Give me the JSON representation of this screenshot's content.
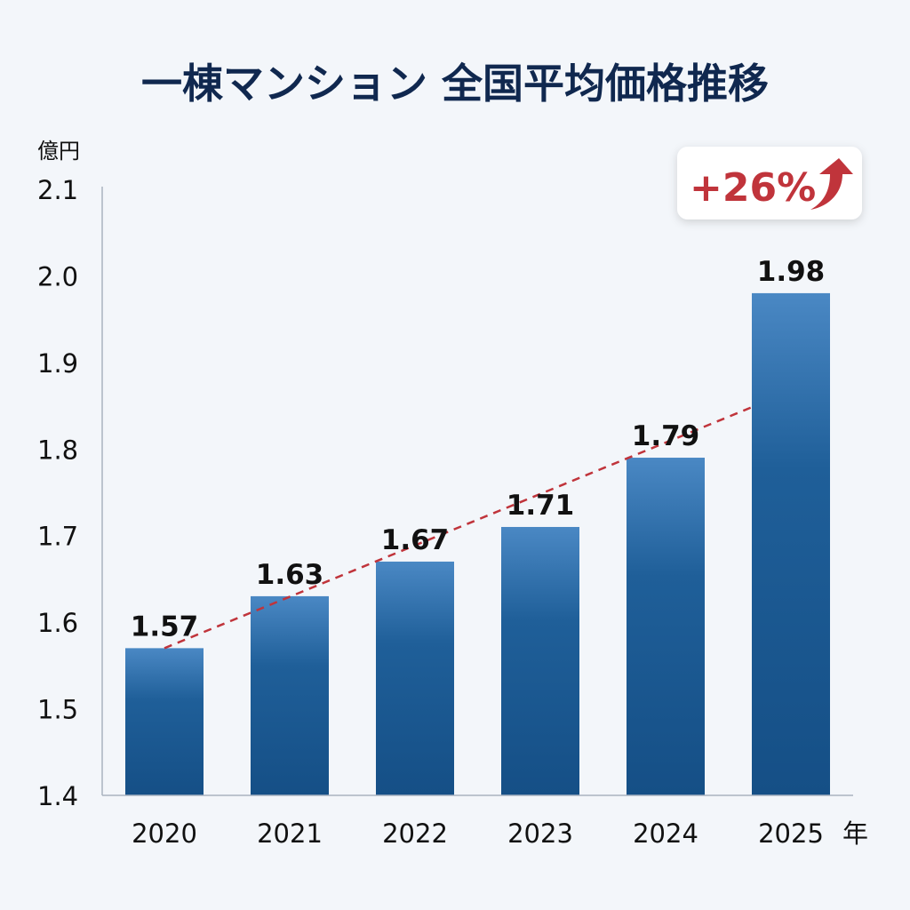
{
  "chart_data": {
    "type": "bar",
    "title": "一棟マンション 全国平均価格推移",
    "ylabel": "億円",
    "xlabel": "年",
    "categories": [
      "2020",
      "2021",
      "2022",
      "2023",
      "2024",
      "2025"
    ],
    "values": [
      1.57,
      1.63,
      1.67,
      1.71,
      1.79,
      1.98
    ],
    "data_labels": [
      "1.57",
      "1.63",
      "1.67",
      "1.71",
      "1.79",
      "1.98"
    ],
    "ylim": [
      1.4,
      2.1
    ],
    "yticks": [
      "1.4",
      "1.5",
      "1.6",
      "1.7",
      "1.8",
      "1.9",
      "2.0",
      "2.1"
    ],
    "grid": false,
    "trend_line": {
      "style": "dashed",
      "color": "#c0343b",
      "start": {
        "x": "2020",
        "y": 1.57
      },
      "end": {
        "x": "2025",
        "y": 1.85
      }
    },
    "annotation": {
      "text": "+26%",
      "icon": "trend-up-arrow-icon",
      "color": "#c0343b"
    },
    "colors": {
      "bar_top": "#4a88c4",
      "bar_bottom": "#154f86",
      "background": "#f3f6fa",
      "title": "#10284f"
    }
  }
}
